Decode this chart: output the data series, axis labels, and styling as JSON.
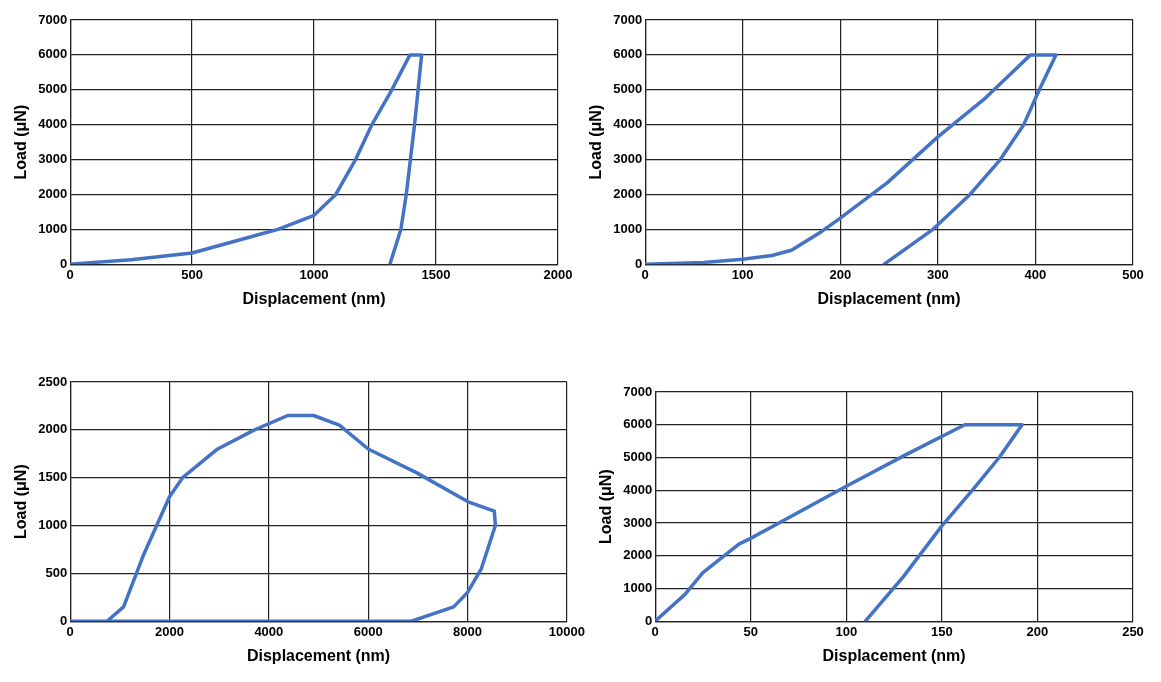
{
  "chart_data": [
    {
      "type": "line",
      "xlabel": "Displacement (nm)",
      "ylabel": "Load (μN)",
      "xlim": [
        0,
        2000
      ],
      "xticks": [
        0,
        500,
        1000,
        1500,
        2000
      ],
      "ylim": [
        0,
        7000
      ],
      "yticks": [
        0,
        1000,
        2000,
        3000,
        4000,
        5000,
        6000,
        7000
      ],
      "grid": true,
      "legend": false,
      "marker": "none",
      "line_style": "solid",
      "series": [
        {
          "color": "#4472c4",
          "x": [
            0,
            250,
            500,
            852,
            1000,
            1089,
            1170,
            1237,
            1319,
            1393,
            1441,
            1412,
            1378,
            1356,
            1311
          ],
          "values": [
            0,
            130,
            320,
            1000,
            1400,
            2000,
            3000,
            4000,
            5000,
            6000,
            6000,
            4000,
            2000,
            1000,
            0
          ]
        }
      ]
    },
    {
      "type": "line",
      "xlabel": "Displacement (nm)",
      "ylabel": "Load (μN)",
      "xlim": [
        0,
        500
      ],
      "xticks": [
        0,
        100,
        200,
        300,
        400,
        500
      ],
      "ylim": [
        0,
        7000
      ],
      "yticks": [
        0,
        1000,
        2000,
        3000,
        4000,
        5000,
        6000,
        7000
      ],
      "grid": true,
      "legend": false,
      "marker": "none",
      "line_style": "solid",
      "series": [
        {
          "color": "#4472c4",
          "x": [
            0,
            60,
            100,
            130,
            150,
            181,
            200,
            248,
            300,
            349,
            395,
            421,
            404,
            388,
            364,
            333,
            295,
            245
          ],
          "values": [
            0,
            50,
            140,
            250,
            400,
            940,
            1320,
            2330,
            3650,
            4770,
            6000,
            6000,
            5000,
            4000,
            3000,
            2000,
            1000,
            0
          ]
        }
      ]
    },
    {
      "type": "line",
      "xlabel": "Displacement (nm)",
      "ylabel": "Load (μN)",
      "xlim": [
        0,
        10000
      ],
      "xticks": [
        0,
        2000,
        4000,
        6000,
        8000,
        10000
      ],
      "ylim": [
        0,
        2500
      ],
      "yticks": [
        0,
        500,
        1000,
        1500,
        2000,
        2500
      ],
      "grid": true,
      "legend": false,
      "marker": "none",
      "line_style": "solid",
      "series": [
        {
          "color": "#4472c4",
          "x": [
            742,
            1076,
            1484,
            2000,
            2264,
            2970,
            3712,
            4380,
            4900,
            5420,
            6000,
            6980,
            8000,
            8538,
            8560,
            8278,
            8000,
            7720,
            6870,
            0
          ],
          "values": [
            0,
            150,
            700,
            1300,
            1500,
            1800,
            2000,
            2150,
            2150,
            2050,
            1800,
            1550,
            1250,
            1150,
            1000,
            550,
            300,
            150,
            0,
            0
          ]
        }
      ]
    },
    {
      "type": "line",
      "xlabel": "Displacement (nm)",
      "ylabel": "Load (μN)",
      "xlim": [
        0,
        250
      ],
      "xticks": [
        0,
        50,
        100,
        150,
        200,
        250
      ],
      "ylim": [
        0,
        7000
      ],
      "yticks": [
        0,
        1000,
        2000,
        3000,
        4000,
        5000,
        6000,
        7000
      ],
      "grid": true,
      "legend": false,
      "marker": "none",
      "line_style": "solid",
      "series": [
        {
          "color": "#4472c4",
          "x": [
            0,
            15.6,
            25,
            44,
            50,
            100,
            130,
            162,
            192,
            180,
            166,
            150,
            130,
            110
          ],
          "values": [
            0,
            820,
            1480,
            2360,
            2530,
            4120,
            5050,
            6000,
            6000,
            5000,
            4000,
            2910,
            1370,
            0
          ]
        }
      ]
    }
  ]
}
